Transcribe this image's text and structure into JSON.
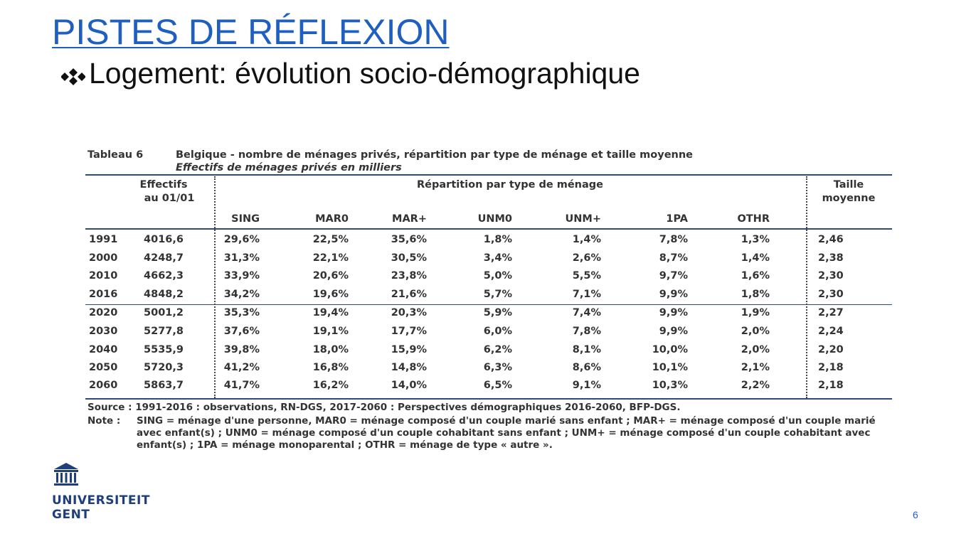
{
  "header": {
    "title": "PISTES DE RÉFLEXION",
    "bullet": "Logement: évolution socio-démographique"
  },
  "table": {
    "label": "Tableau 6",
    "title": "Belgique - nombre de ménages privés, répartition par type de ménage et taille moyenne",
    "subtitle": "Effectifs de ménages privés en milliers",
    "header_effectifs": [
      "Effectifs",
      "au 01/01"
    ],
    "header_group": "Répartition par type de ménage",
    "header_taille": [
      "Taille",
      "moyenne"
    ],
    "columns": [
      "SING",
      "MAR0",
      "MAR+",
      "UNM0",
      "UNM+",
      "1PA",
      "OTHR"
    ],
    "rows": [
      [
        "1991",
        "4016,6",
        "29,6%",
        "22,5%",
        "35,6%",
        "1,8%",
        "1,4%",
        "7,8%",
        "1,3%",
        "2,46"
      ],
      [
        "2000",
        "4248,7",
        "31,3%",
        "22,1%",
        "30,5%",
        "3,4%",
        "2,6%",
        "8,7%",
        "1,4%",
        "2,38"
      ],
      [
        "2010",
        "4662,3",
        "33,9%",
        "20,6%",
        "23,8%",
        "5,0%",
        "5,5%",
        "9,7%",
        "1,6%",
        "2,30"
      ],
      [
        "2016",
        "4848,2",
        "34,2%",
        "19,6%",
        "21,6%",
        "5,7%",
        "7,1%",
        "9,9%",
        "1,8%",
        "2,30"
      ],
      [
        "2020",
        "5001,2",
        "35,3%",
        "19,4%",
        "20,3%",
        "5,9%",
        "7,4%",
        "9,9%",
        "1,9%",
        "2,27"
      ],
      [
        "2030",
        "5277,8",
        "37,6%",
        "19,1%",
        "17,7%",
        "6,0%",
        "7,8%",
        "9,9%",
        "2,0%",
        "2,24"
      ],
      [
        "2040",
        "5535,9",
        "39,8%",
        "18,0%",
        "15,9%",
        "6,2%",
        "8,1%",
        "10,0%",
        "2,0%",
        "2,20"
      ],
      [
        "2050",
        "5720,3",
        "41,2%",
        "16,8%",
        "14,8%",
        "6,3%",
        "8,6%",
        "10,1%",
        "2,1%",
        "2,18"
      ],
      [
        "2060",
        "5863,7",
        "41,7%",
        "16,2%",
        "14,0%",
        "6,5%",
        "9,1%",
        "10,3%",
        "2,2%",
        "2,18"
      ]
    ],
    "source": "Source : 1991-2016 : observations, RN-DGS, 2017-2060 : Perspectives démographiques 2016-2060, BFP-DGS.",
    "note_label": "Note :",
    "note": "SING = ménage d'une personne, MAR0 = ménage composé d'un couple marié sans enfant ; MAR+ = ménage composé d'un couple marié avec enfant(s) ; UNM0 = ménage composé d'un couple cohabitant sans enfant ; UNM+ = ménage composé d'un couple cohabitant avec enfant(s) ; 1PA = ménage monoparental ; OTHR = ménage de type « autre »."
  },
  "footer": {
    "logo": [
      "UNIVERSITEIT",
      "GENT"
    ],
    "page_number": "6"
  }
}
